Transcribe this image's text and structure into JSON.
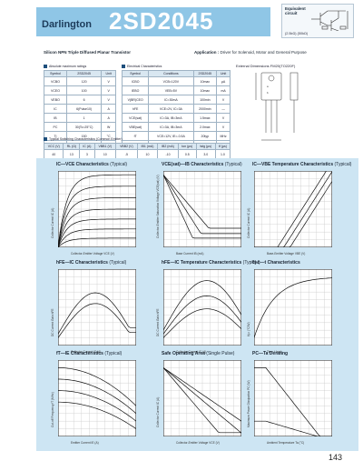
{
  "header": {
    "series": "Darlington",
    "part_number": "2SD2045",
    "equivalent_circuit_label": "Equivalent circuit",
    "equivalent_circuit_caption": "(2.5kΩ)   (50kΩ)"
  },
  "description": "Silicon NPN Triple Diffused Planar Transistor",
  "application_label": "Application :",
  "application_text": "Driver for Solenoid, Motor and General Purpose",
  "abs_max": {
    "title": "Absolute maximum ratings",
    "headers": [
      "Symbol",
      "2SD2045",
      "Unit"
    ],
    "rows": [
      [
        "VCBO",
        "120",
        "V"
      ],
      [
        "VCEO",
        "100",
        "V"
      ],
      [
        "VEBO",
        "6",
        "V"
      ],
      [
        "IC",
        "6(Pulse10)",
        "A"
      ],
      [
        "IB",
        "1",
        "A"
      ],
      [
        "PC",
        "30(Tc=25°C)",
        "W"
      ],
      [
        "Tj",
        "150",
        "°C"
      ],
      [
        "Tstg",
        "-55 to +150",
        "°C"
      ]
    ]
  },
  "electrical": {
    "title": "Electrical Characteristics",
    "headers": [
      "Symbol",
      "Conditions",
      "2SD2045",
      "Unit"
    ],
    "rows": [
      [
        "ICBO",
        "VCB=120V",
        "10max",
        "μA"
      ],
      [
        "IEBO",
        "VEB=5V",
        "10max",
        "mA"
      ],
      [
        "V(BR)CEO",
        "IC=30mA",
        "100min",
        "V"
      ],
      [
        "hFE",
        "VCE=2V, IC=3A",
        "2000min",
        "—"
      ],
      [
        "VCE(sat)",
        "IC=3A, IB=3mA",
        "1.5max",
        "V"
      ],
      [
        "VBE(sat)",
        "IC=3A, IB=3mA",
        "2.0max",
        "V"
      ],
      [
        "fT",
        "VCE=12V, IE=-0.5A",
        "20typ",
        "MHz"
      ],
      [
        "Cob",
        "VCB=10V, f=1MHz",
        "70typ",
        "pF"
      ]
    ]
  },
  "switching": {
    "title": "Typical Switching Characteristics (Common Emitter)",
    "headers": [
      "VCC (V)",
      "RL (Ω)",
      "IC (A)",
      "VBB1 (V)",
      "VBB2 (V)",
      "IB1 (mA)",
      "IB2 (mA)",
      "ton (μs)",
      "tstg (μs)",
      "tf (μs)"
    ],
    "rows": [
      [
        "40",
        "13",
        "3",
        "10",
        "-5",
        "10",
        "-10",
        "0.5",
        "3.0",
        "1.0"
      ]
    ]
  },
  "outline": {
    "title": "External Dimensions FM20(TO220F)",
    "notes": [
      "Weight : Approx 2.0g",
      "a. Type No.",
      "b. Lot No."
    ]
  },
  "charts": [
    {
      "title": "IC—VCE Characteristics",
      "note": "(Typical)",
      "xlabel": "Collector-Emitter Voltage VCE (V)",
      "ylabel": "Collector Current IC (A)"
    },
    {
      "title": "VCE(sat)—IB Characteristics",
      "note": "(Typical)",
      "xlabel": "Base Current IB (mA)",
      "ylabel": "Collector-Emitter Saturation Voltage VCE(sat) (V)"
    },
    {
      "title": "IC—VBE Temperature Characteristics",
      "note": "(Typical)",
      "xlabel": "Base-Emitter Voltage VBE (V)",
      "ylabel": "Collector Current IC (A)"
    },
    {
      "title": "hFE—IC Characteristics",
      "note": "(Typical)",
      "xlabel": "Collector Current IC (A)",
      "ylabel": "DC Current Gain hFE"
    },
    {
      "title": "hFE—IC Temperature Characteristics",
      "note": "(Typical)",
      "xlabel": "Collector Current IC (A)",
      "ylabel": "DC Current Gain hFE"
    },
    {
      "title": "θj-c—t Characteristics",
      "note": "",
      "xlabel": "Time t (ms)",
      "ylabel": "θj-c (°C/W)"
    },
    {
      "title": "fT—IE Characteristics",
      "note": "(Typical)",
      "xlabel": "Emitter Current IE (A)",
      "ylabel": "Cut-off Frequency fT (MHz)"
    },
    {
      "title": "Safe Operating Area",
      "note": "(Single Pulse)",
      "xlabel": "Collector-Emitter Voltage VCE (V)",
      "ylabel": "Collector Current IC (A)"
    },
    {
      "title": "PC—Ta Derating",
      "note": "",
      "xlabel": "Ambient Temperature Ta (°C)",
      "ylabel": "Maximum Power Dissipation PC (W)"
    }
  ],
  "page_number": "143",
  "colors": {
    "header_band": "#8fc6e6",
    "chart_panel": "#cde5f3",
    "curve": "#111111"
  }
}
